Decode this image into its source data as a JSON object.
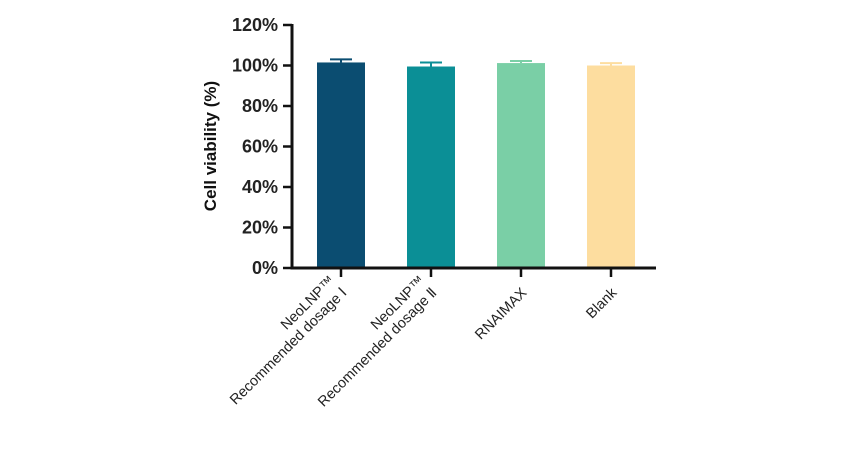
{
  "chart_data": {
    "type": "bar",
    "title": "",
    "xlabel": "",
    "ylabel": "Cell viability (%)",
    "ylim": [
      0,
      120
    ],
    "yticks": [
      "0%",
      "20%",
      "40%",
      "60%",
      "80%",
      "100%",
      "120%"
    ],
    "yticks_values": [
      0,
      20,
      40,
      60,
      80,
      100,
      120
    ],
    "categories": [
      [
        "NeoLNP™",
        "Recommended dosage Ⅰ"
      ],
      [
        "NeoLNP™",
        "Recommended dosage Ⅱ"
      ],
      [
        "RNAIMAX"
      ],
      [
        "Blank"
      ]
    ],
    "values": [
      101.5,
      99.5,
      101.2,
      100.0
    ],
    "errors": [
      1.5,
      2.0,
      1.0,
      1.2
    ],
    "colors": [
      "#0b4d71",
      "#0b8f96",
      "#7acfa6",
      "#fddd9f"
    ],
    "grid": false,
    "legend": "none"
  }
}
